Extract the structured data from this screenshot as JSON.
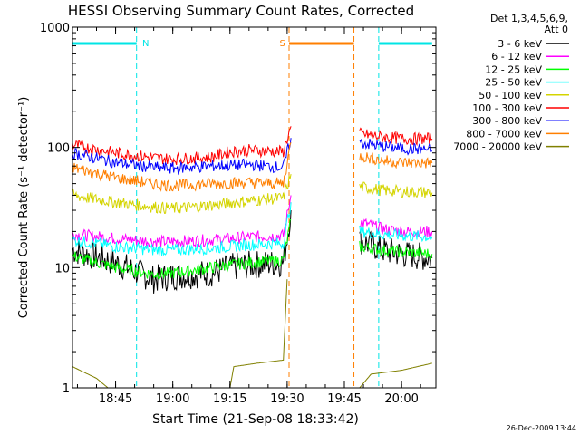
{
  "chart_data": {
    "type": "line",
    "title": "HESSI Observing Summary Count Rates, Corrected",
    "xlabel": "Start Time (21-Sep-08 18:33:42)",
    "ylabel": "Corrected Count Rate (s⁻¹ detector⁻¹)",
    "yscale": "log",
    "ylim": [
      1,
      1000
    ],
    "xlim": [
      "18:33:42",
      "20:09:00"
    ],
    "x_ticks": [
      "18:45",
      "19:00",
      "19:15",
      "19:30",
      "19:45",
      "20:00"
    ],
    "y_ticks": [
      "1",
      "10",
      "100",
      "1000"
    ],
    "legend_header": [
      "Det 1,3,4,5,6,9,",
      "Att 0"
    ],
    "legend_position": "right",
    "footer_date": "26-Dec-2009 13:44",
    "markers": [
      {
        "label": "N",
        "color": "#00e5e5",
        "type": "night",
        "bars": [
          [
            "18:33:42",
            "18:50:30"
          ],
          [
            "19:54:00",
            "20:08:00"
          ]
        ],
        "lines": [
          "18:50:30",
          "19:54:00"
        ],
        "label_at": "18:52:00"
      },
      {
        "label": "S",
        "color": "#ff7f00",
        "type": "saa",
        "bars": [
          [
            "19:30:30",
            "19:47:30"
          ]
        ],
        "lines": [
          "19:30:30",
          "19:47:30"
        ],
        "label_at": "19:28:00"
      }
    ],
    "series": [
      {
        "name": "3 - 6 keV",
        "color": "#000000",
        "points": [
          [
            "18:33:42",
            14
          ],
          [
            "18:45",
            11
          ],
          [
            "18:55",
            8
          ],
          [
            "19:00",
            8.5
          ],
          [
            "19:10",
            9
          ],
          [
            "19:15",
            10
          ],
          [
            "19:20",
            10.5
          ],
          [
            "19:29",
            11
          ],
          [
            "19:31",
            30
          ],
          null,
          [
            "19:49",
            17
          ],
          [
            "19:55",
            14
          ],
          [
            "20:00",
            13
          ],
          [
            "20:08",
            12
          ]
        ]
      },
      {
        "name": "6 - 12 keV",
        "color": "#ff00ff",
        "points": [
          [
            "18:33:42",
            19
          ],
          [
            "18:45",
            17.5
          ],
          [
            "18:55",
            16.5
          ],
          [
            "19:00",
            16.5
          ],
          [
            "19:10",
            17
          ],
          [
            "19:20",
            18
          ],
          [
            "19:29",
            18.5
          ],
          [
            "19:31",
            40
          ],
          null,
          [
            "19:49",
            24
          ],
          [
            "19:55",
            21
          ],
          [
            "20:00",
            20
          ],
          [
            "20:08",
            20
          ]
        ]
      },
      {
        "name": "12 - 25 keV",
        "color": "#00ff00",
        "points": [
          [
            "18:33:42",
            12.5
          ],
          [
            "18:45",
            10
          ],
          [
            "18:55",
            8.8
          ],
          [
            "19:00",
            9
          ],
          [
            "19:10",
            10
          ],
          [
            "19:20",
            11
          ],
          [
            "19:29",
            11.5
          ],
          [
            "19:31",
            25
          ],
          null,
          [
            "19:49",
            15
          ],
          [
            "19:55",
            14
          ],
          [
            "20:00",
            13.5
          ],
          [
            "20:08",
            13
          ]
        ]
      },
      {
        "name": "25 - 50 keV",
        "color": "#00ffff",
        "points": [
          [
            "18:33:42",
            17
          ],
          [
            "18:45",
            15
          ],
          [
            "18:55",
            14
          ],
          [
            "19:00",
            14
          ],
          [
            "19:10",
            14.5
          ],
          [
            "19:20",
            15.5
          ],
          [
            "19:29",
            16
          ],
          [
            "19:31",
            35
          ],
          null,
          [
            "19:49",
            20
          ],
          [
            "19:55",
            19
          ],
          [
            "20:00",
            18.5
          ],
          [
            "20:08",
            18
          ]
        ]
      },
      {
        "name": "50 - 100 keV",
        "color": "#d4d400",
        "points": [
          [
            "18:33:42",
            40
          ],
          [
            "18:45",
            35
          ],
          [
            "18:55",
            32
          ],
          [
            "19:00",
            31
          ],
          [
            "19:10",
            33
          ],
          [
            "19:20",
            36
          ],
          [
            "19:29",
            38
          ],
          [
            "19:31",
            60
          ],
          null,
          [
            "19:49",
            47
          ],
          [
            "19:55",
            44
          ],
          [
            "20:00",
            43
          ],
          [
            "20:08",
            42
          ]
        ]
      },
      {
        "name": "100 - 300 keV",
        "color": "#ff0000",
        "points": [
          [
            "18:33:42",
            105
          ],
          [
            "18:45",
            90
          ],
          [
            "18:55",
            82
          ],
          [
            "19:00",
            80
          ],
          [
            "19:10",
            83
          ],
          [
            "19:15",
            92
          ],
          [
            "19:20",
            95
          ],
          [
            "19:29",
            92
          ],
          [
            "19:31",
            150
          ],
          null,
          [
            "19:49",
            130
          ],
          [
            "19:55",
            122
          ],
          [
            "20:00",
            118
          ],
          [
            "20:08",
            118
          ]
        ]
      },
      {
        "name": "300 - 800 keV",
        "color": "#0000ff",
        "points": [
          [
            "18:33:42",
            90
          ],
          [
            "18:45",
            75
          ],
          [
            "18:55",
            68
          ],
          [
            "19:00",
            67
          ],
          [
            "19:10",
            70
          ],
          [
            "19:20",
            72
          ],
          [
            "19:29",
            68
          ],
          [
            "19:31",
            120
          ],
          null,
          [
            "19:49",
            110
          ],
          [
            "19:55",
            102
          ],
          [
            "20:00",
            98
          ],
          [
            "20:08",
            96
          ]
        ]
      },
      {
        "name": "800 - 7000 keV",
        "color": "#ff7f00",
        "points": [
          [
            "18:33:42",
            68
          ],
          [
            "18:45",
            56
          ],
          [
            "18:55",
            50
          ],
          [
            "19:00",
            48
          ],
          [
            "19:10",
            50
          ],
          [
            "19:20",
            51
          ],
          [
            "19:29",
            50
          ],
          [
            "19:31",
            110
          ],
          null,
          [
            "19:49",
            85
          ],
          [
            "19:55",
            78
          ],
          [
            "20:00",
            75
          ],
          [
            "20:08",
            74
          ]
        ]
      },
      {
        "name": "7000 - 20000 keV",
        "color": "#808000",
        "points": [
          [
            "18:33:42",
            1.5
          ],
          [
            "18:40",
            1.2
          ],
          [
            "18:43",
            1
          ],
          [
            "19:15",
            1
          ],
          [
            "19:16",
            1.5
          ],
          [
            "19:22",
            1.6
          ],
          [
            "19:29",
            1.7
          ],
          [
            "19:30",
            8
          ],
          null,
          [
            "19:49",
            1
          ],
          [
            "19:52",
            1.3
          ],
          [
            "20:00",
            1.4
          ],
          [
            "20:08",
            1.6
          ]
        ]
      }
    ]
  }
}
